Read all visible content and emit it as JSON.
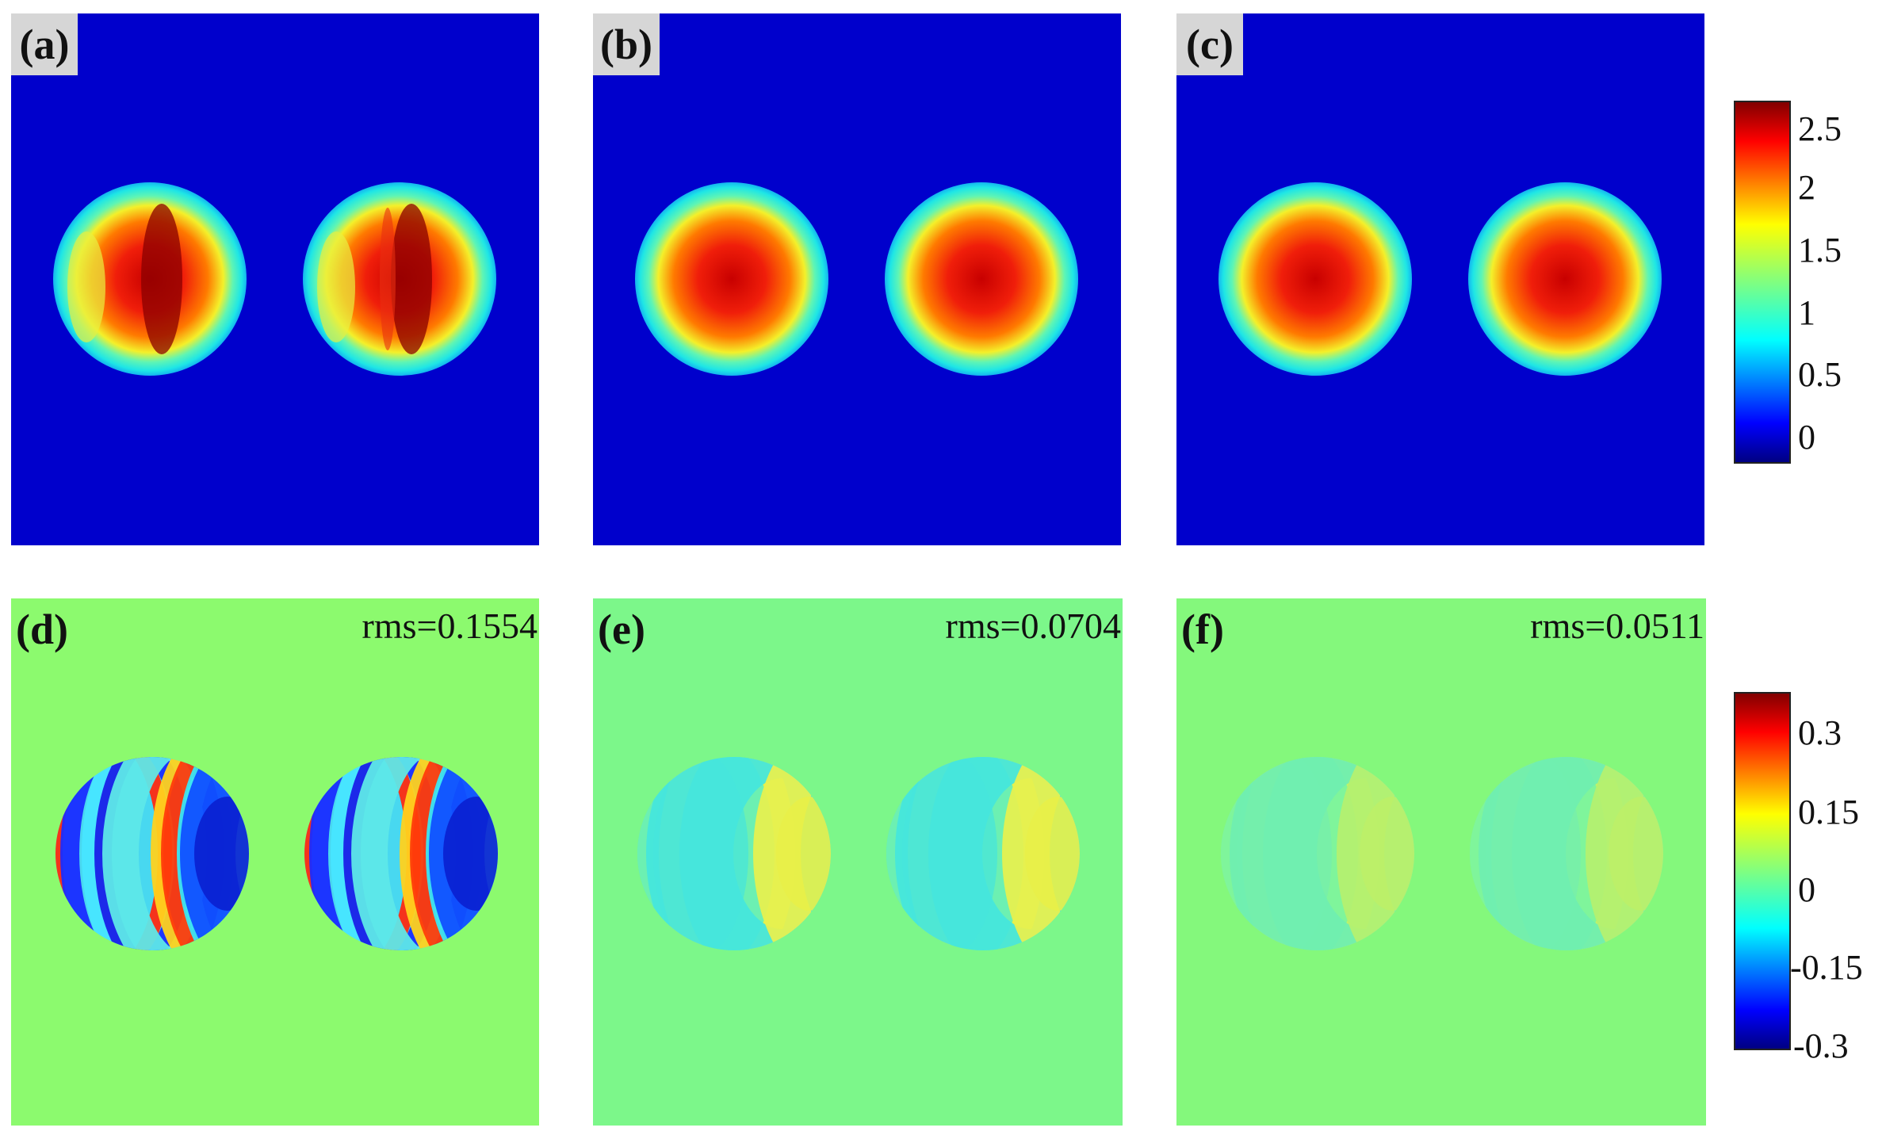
{
  "figure": {
    "panels": [
      {
        "id": "a",
        "label": "(a)",
        "rms": "",
        "kind": "phase",
        "variant": "distorted"
      },
      {
        "id": "b",
        "label": "(b)",
        "rms": "",
        "kind": "phase",
        "variant": "smooth"
      },
      {
        "id": "c",
        "label": "(c)",
        "rms": "",
        "kind": "phase",
        "variant": "smooth"
      },
      {
        "id": "d",
        "label": "(d)",
        "rms": "rms=0.1554",
        "kind": "error",
        "variant": "strong"
      },
      {
        "id": "e",
        "label": "(e)",
        "rms": "rms=0.0704",
        "kind": "error",
        "variant": "medium"
      },
      {
        "id": "f",
        "label": "(f)",
        "rms": "rms=0.0511",
        "kind": "error",
        "variant": "weak"
      }
    ],
    "colorbar_top": {
      "ticks": [
        "2.5",
        "2",
        "1.5",
        "1",
        "0.5",
        "0"
      ],
      "colormap": "jet"
    },
    "colorbar_bottom": {
      "ticks": [
        "0.3",
        "0.15",
        "0",
        "-0.15",
        "-0.3"
      ],
      "colormap": "jet"
    }
  },
  "colors": {
    "phase_background": "#0000cc",
    "error_background_d": "#8cfa6e",
    "error_background_e": "#7cf78a",
    "error_background_f": "#84f87c"
  }
}
